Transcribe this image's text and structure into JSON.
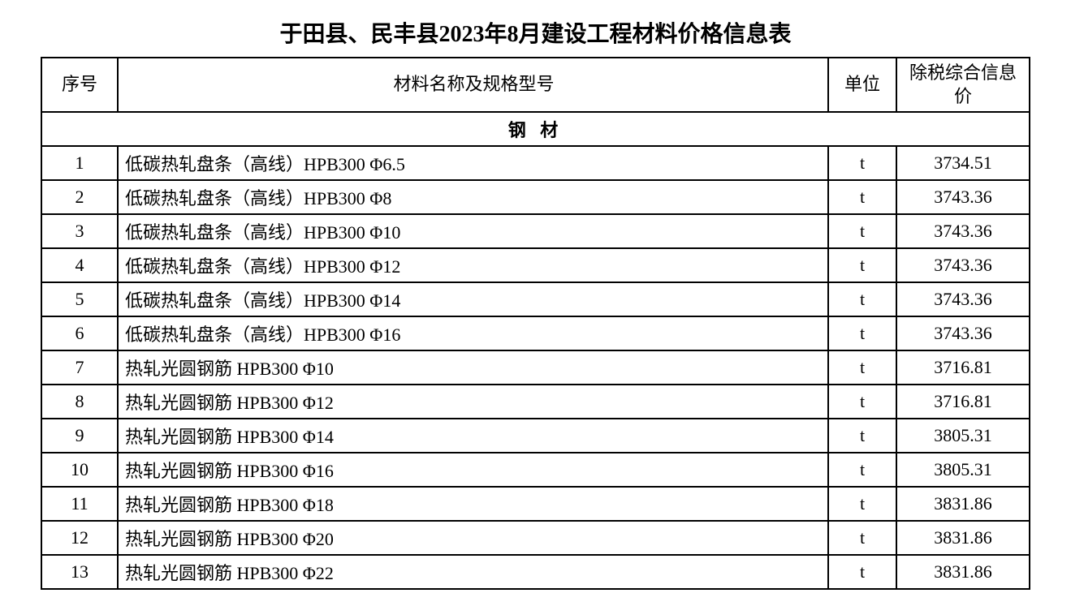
{
  "title": "于田县、民丰县2023年8月建设工程材料价格信息表",
  "headers": {
    "seq": "序号",
    "name": "材料名称及规格型号",
    "unit": "单位",
    "price": "除税综合信息价"
  },
  "section": "钢 材",
  "rows": [
    {
      "seq": "1",
      "name": "低碳热轧盘条（高线）HPB300  Φ6.5",
      "unit": "t",
      "price": "3734.51"
    },
    {
      "seq": "2",
      "name": "低碳热轧盘条（高线）HPB300  Φ8",
      "unit": "t",
      "price": "3743.36"
    },
    {
      "seq": "3",
      "name": "低碳热轧盘条（高线）HPB300  Φ10",
      "unit": "t",
      "price": "3743.36"
    },
    {
      "seq": "4",
      "name": "低碳热轧盘条（高线）HPB300  Φ12",
      "unit": "t",
      "price": "3743.36"
    },
    {
      "seq": "5",
      "name": "低碳热轧盘条（高线）HPB300  Φ14",
      "unit": "t",
      "price": "3743.36"
    },
    {
      "seq": "6",
      "name": "低碳热轧盘条（高线）HPB300  Φ16",
      "unit": "t",
      "price": "3743.36"
    },
    {
      "seq": "7",
      "name": "热轧光圆钢筋  HPB300  Φ10",
      "unit": "t",
      "price": "3716.81"
    },
    {
      "seq": "8",
      "name": "热轧光圆钢筋  HPB300  Φ12",
      "unit": "t",
      "price": "3716.81"
    },
    {
      "seq": "9",
      "name": "热轧光圆钢筋  HPB300  Φ14",
      "unit": "t",
      "price": "3805.31"
    },
    {
      "seq": "10",
      "name": "热轧光圆钢筋  HPB300  Φ16",
      "unit": "t",
      "price": "3805.31"
    },
    {
      "seq": "11",
      "name": "热轧光圆钢筋  HPB300  Φ18",
      "unit": "t",
      "price": "3831.86"
    },
    {
      "seq": "12",
      "name": "热轧光圆钢筋  HPB300  Φ20",
      "unit": "t",
      "price": "3831.86"
    },
    {
      "seq": "13",
      "name": "热轧光圆钢筋  HPB300  Φ22",
      "unit": "t",
      "price": "3831.86"
    }
  ],
  "styling": {
    "title_fontsize": 28,
    "cell_fontsize": 22,
    "border_color": "#000000",
    "border_width": 2,
    "background_color": "#ffffff",
    "text_color": "#000000",
    "font_family": "SimSun",
    "col_widths": {
      "seq": 80,
      "unit": 70,
      "price": 150
    }
  }
}
